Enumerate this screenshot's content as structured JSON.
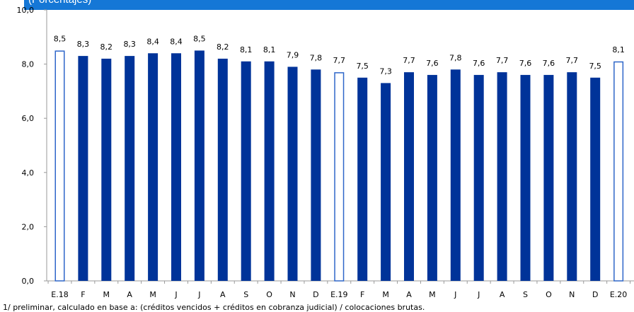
{
  "banner": {
    "text": "(Porcentajes)",
    "color": "#1577d6"
  },
  "footnote": "1/ preliminar, calculado en base a: (créditos vencidos + créditos en cobranza judicial) / colocaciones brutas.",
  "chart_data": {
    "type": "bar",
    "title": "",
    "xlabel": "",
    "ylabel": "",
    "ylim": [
      0,
      10
    ],
    "yticks": [
      "0,0",
      "2,0",
      "4,0",
      "6,0",
      "8,0",
      "10,0"
    ],
    "grid": false,
    "categories": [
      "E.18",
      "F",
      "M",
      "A",
      "M",
      "J",
      "J",
      "A",
      "S",
      "O",
      "N",
      "D",
      "E.19",
      "F",
      "M",
      "A",
      "M",
      "J",
      "J",
      "A",
      "S",
      "O",
      "N",
      "D",
      "E.20"
    ],
    "values": [
      8.5,
      8.3,
      8.2,
      8.3,
      8.4,
      8.4,
      8.5,
      8.2,
      8.1,
      8.1,
      7.9,
      7.8,
      7.7,
      7.5,
      7.3,
      7.7,
      7.6,
      7.8,
      7.6,
      7.7,
      7.6,
      7.6,
      7.7,
      7.5,
      8.1
    ],
    "value_labels": [
      "8,5",
      "8,3",
      "8,2",
      "8,3",
      "8,4",
      "8,4",
      "8,5",
      "8,2",
      "8,1",
      "8,1",
      "7,9",
      "7,8",
      "7,7",
      "7,5",
      "7,3",
      "7,7",
      "7,6",
      "7,8",
      "7,6",
      "7,7",
      "7,6",
      "7,6",
      "7,7",
      "7,5",
      "8,1"
    ],
    "highlight": [
      true,
      false,
      false,
      false,
      false,
      false,
      false,
      false,
      false,
      false,
      false,
      false,
      true,
      false,
      false,
      false,
      false,
      false,
      false,
      false,
      false,
      false,
      false,
      false,
      true
    ],
    "colors": {
      "bar": "#003399",
      "highlight_outline": "#2e66c9",
      "highlight_fill": "#ffffff",
      "axis": "#9a9a9a"
    }
  }
}
